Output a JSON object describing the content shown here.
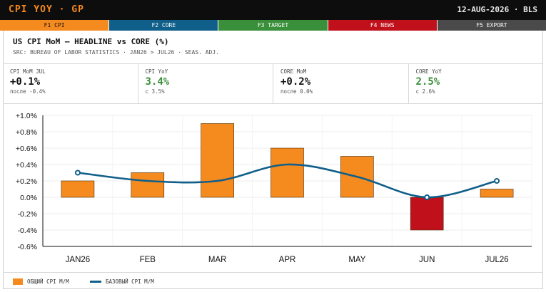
{
  "topbar": {
    "title": "CPI YOY · GP",
    "datestamp": "12-AUG-2026 · BLS"
  },
  "fkeys": [
    "F1 CPI",
    "F2 CORE",
    "F3 TARGET",
    "F4 NEWS",
    "F5 EXPORT"
  ],
  "header": {
    "title": "US CPI MoM — HEADLINE vs CORE (%)",
    "subtitle": "SRC: BUREAU OF LABOR STATISTICS · JAN26 > JUL26 · SEAS. ADJ."
  },
  "kpis": [
    {
      "label": "CPI MoM JUL",
      "value": "+0.1%",
      "sub": "после -0.4%",
      "green": false
    },
    {
      "label": "CPI YoY",
      "value": "3.4%",
      "sub": "с 3.5%",
      "green": true
    },
    {
      "label": "CORE MoM",
      "value": "+0.2%",
      "sub": "после 0.0%",
      "green": false
    },
    {
      "label": "CORE YoY",
      "value": "2.5%",
      "sub": "с 2.6%",
      "green": true
    }
  ],
  "colors": {
    "headline": "#f58a1f",
    "negative": "#c0101b",
    "core": "#0f5f8a",
    "grid": "#ececec"
  },
  "chart_data": {
    "type": "bar",
    "categories": [
      "JAN26",
      "FEB",
      "MAR",
      "APR",
      "MAY",
      "JUN",
      "JUL26"
    ],
    "series": [
      {
        "name": "ОБЩИЙ CPI М/М",
        "type": "bar",
        "values": [
          0.2,
          0.3,
          0.9,
          0.6,
          0.5,
          -0.4,
          0.1
        ]
      },
      {
        "name": "БАЗОВЫЙ CPI М/М",
        "type": "line",
        "values": [
          0.3,
          0.2,
          0.2,
          0.4,
          0.25,
          0.0,
          0.2
        ]
      }
    ],
    "ylim": [
      -0.6,
      1.0
    ],
    "yticks": [
      1.0,
      0.8,
      0.6,
      0.4,
      0.2,
      0.0,
      -0.2,
      -0.4,
      -0.6
    ],
    "ytick_labels": [
      "+1.0%",
      "+0.8%",
      "+0.6%",
      "+0.4%",
      "+0.2%",
      "0.0%",
      "-0.2%",
      "-0.4%",
      "-0.6%"
    ],
    "grid": true,
    "legend": "bottom-left"
  }
}
